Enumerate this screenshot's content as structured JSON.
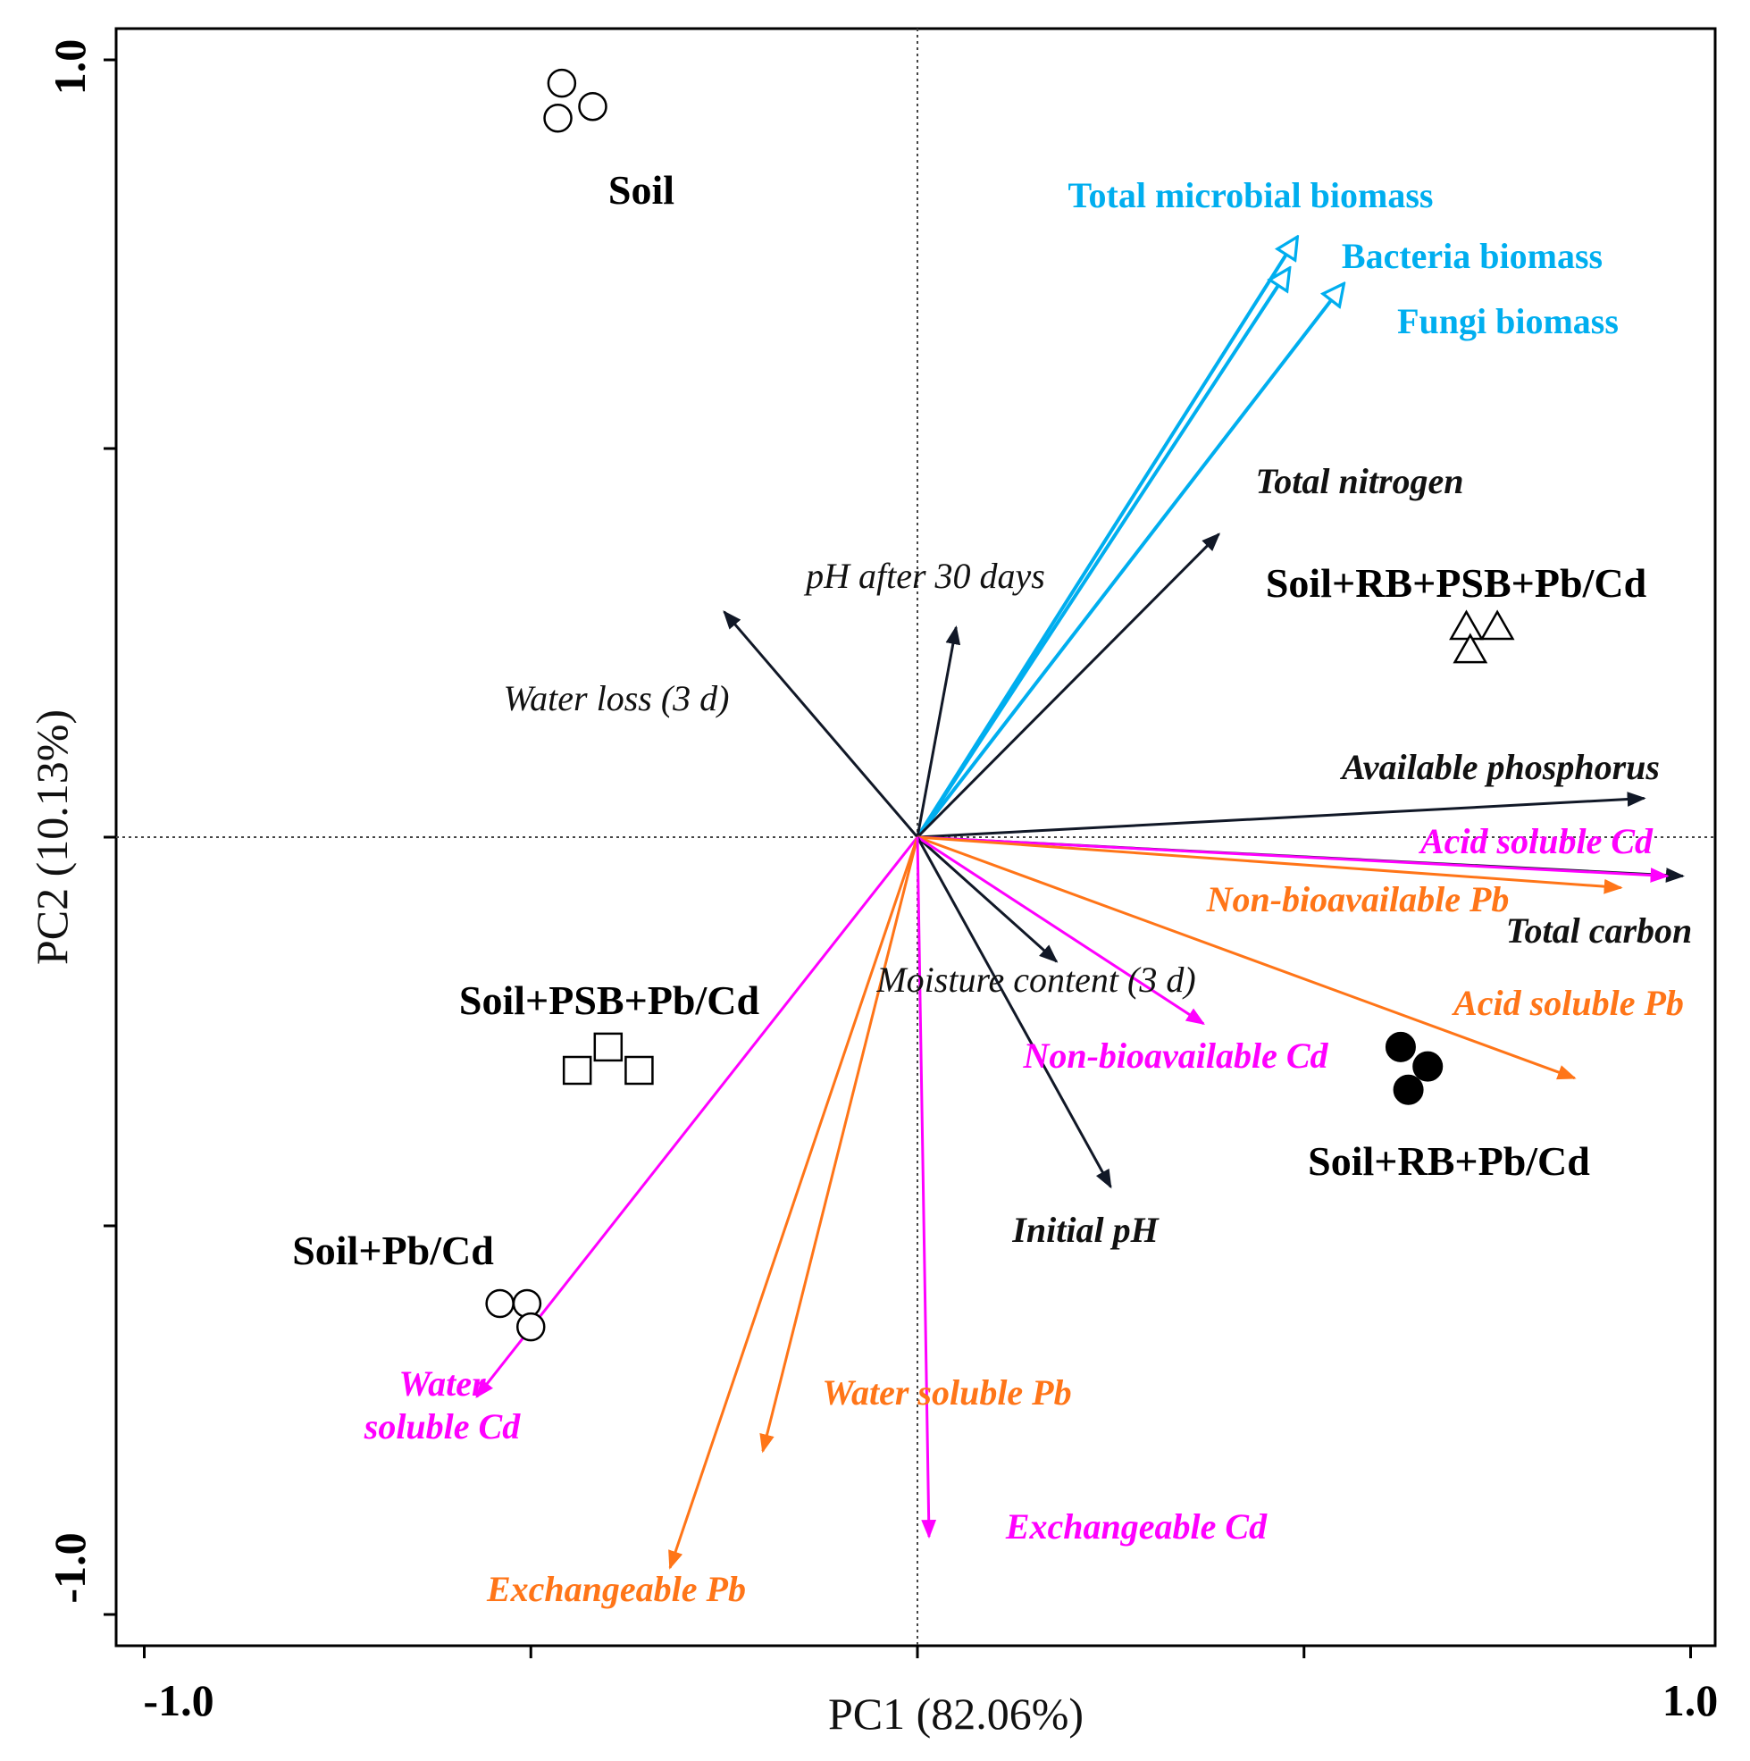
{
  "chart_data": {
    "type": "scatter",
    "subtype": "pca-biplot",
    "xlabel": "PC1 (82.06%)",
    "ylabel": "PC2 (10.13%)",
    "xlim": [
      -1.0,
      1.0
    ],
    "ylim": [
      -1.0,
      1.0
    ],
    "x_ticks": [
      -1.0,
      -0.5,
      0,
      0.5,
      1.0
    ],
    "y_ticks": [
      -1.0,
      -0.5,
      0,
      0.5,
      1.0
    ],
    "x_tick_labels": [
      "-1.0",
      "1.0"
    ],
    "y_tick_labels": [
      "1.0",
      "-1.0"
    ],
    "reference_lines": "dotted lines at x=0 and y=0",
    "colors": {
      "physchem": "#111827",
      "cd": "#ff00ff",
      "pb": "#ff7518",
      "biomass": "#00aeef"
    },
    "samples": [
      {
        "name": "Soil",
        "marker": "open-circle",
        "points": [
          [
            -0.46,
            0.97
          ],
          [
            -0.42,
            0.94
          ],
          [
            -0.465,
            0.925
          ]
        ]
      },
      {
        "name": "Soil+RB+PSB+Pb/Cd",
        "marker": "open-triangle",
        "points": [
          [
            0.71,
            0.27
          ],
          [
            0.75,
            0.27
          ],
          [
            0.715,
            0.24
          ]
        ]
      },
      {
        "name": "Soil+PSB+Pb/Cd",
        "marker": "open-square",
        "points": [
          [
            -0.4,
            -0.27
          ],
          [
            -0.44,
            -0.3
          ],
          [
            -0.36,
            -0.3
          ]
        ]
      },
      {
        "name": "Soil+Pb/Cd",
        "marker": "open-circle",
        "points": [
          [
            -0.54,
            -0.6
          ],
          [
            -0.505,
            -0.6
          ],
          [
            -0.5,
            -0.63
          ]
        ]
      },
      {
        "name": "Soil+RB+Pb/Cd",
        "marker": "filled-circle",
        "points": [
          [
            0.625,
            -0.27
          ],
          [
            0.66,
            -0.295
          ],
          [
            0.635,
            -0.325
          ]
        ]
      }
    ],
    "vectors": [
      {
        "name": "Total microbial biomass",
        "group": "biomass",
        "x": 0.49,
        "y": 0.77
      },
      {
        "name": "Bacteria biomass",
        "group": "biomass",
        "x": 0.48,
        "y": 0.73
      },
      {
        "name": "Fungi biomass",
        "group": "biomass",
        "x": 0.55,
        "y": 0.71
      },
      {
        "name": "Total nitrogen",
        "group": "physchem",
        "x": 0.39,
        "y": 0.39
      },
      {
        "name": "pH after 30 days",
        "group": "physchem",
        "x": 0.05,
        "y": 0.27
      },
      {
        "name": "Water loss (3 d)",
        "group": "physchem",
        "x": -0.25,
        "y": 0.29
      },
      {
        "name": "Available phosphorus",
        "group": "physchem",
        "x": 0.94,
        "y": 0.05
      },
      {
        "name": "Total carbon",
        "group": "physchem",
        "x": 0.99,
        "y": -0.05
      },
      {
        "name": "Acid soluble Cd",
        "group": "cd",
        "x": 0.97,
        "y": -0.05
      },
      {
        "name": "Non-bioavailable Pb",
        "group": "pb",
        "x": 0.91,
        "y": -0.065
      },
      {
        "name": "Moisture content (3 d)",
        "group": "physchem",
        "x": 0.18,
        "y": -0.16
      },
      {
        "name": "Acid soluble Pb",
        "group": "pb",
        "x": 0.85,
        "y": -0.31
      },
      {
        "name": "Non-bioavailable Cd",
        "group": "cd",
        "x": 0.37,
        "y": -0.24
      },
      {
        "name": "Initial pH",
        "group": "physchem",
        "x": 0.25,
        "y": -0.45
      },
      {
        "name": "Water\nsoluble Cd",
        "group": "cd",
        "x": -0.57,
        "y": -0.72
      },
      {
        "name": "Water soluble Pb",
        "group": "pb",
        "x": -0.2,
        "y": -0.79
      },
      {
        "name": "Exchangeable Pb",
        "group": "pb",
        "x": -0.32,
        "y": -0.94
      },
      {
        "name": "Exchangeable Cd",
        "group": "cd",
        "x": 0.015,
        "y": -0.9
      }
    ]
  }
}
